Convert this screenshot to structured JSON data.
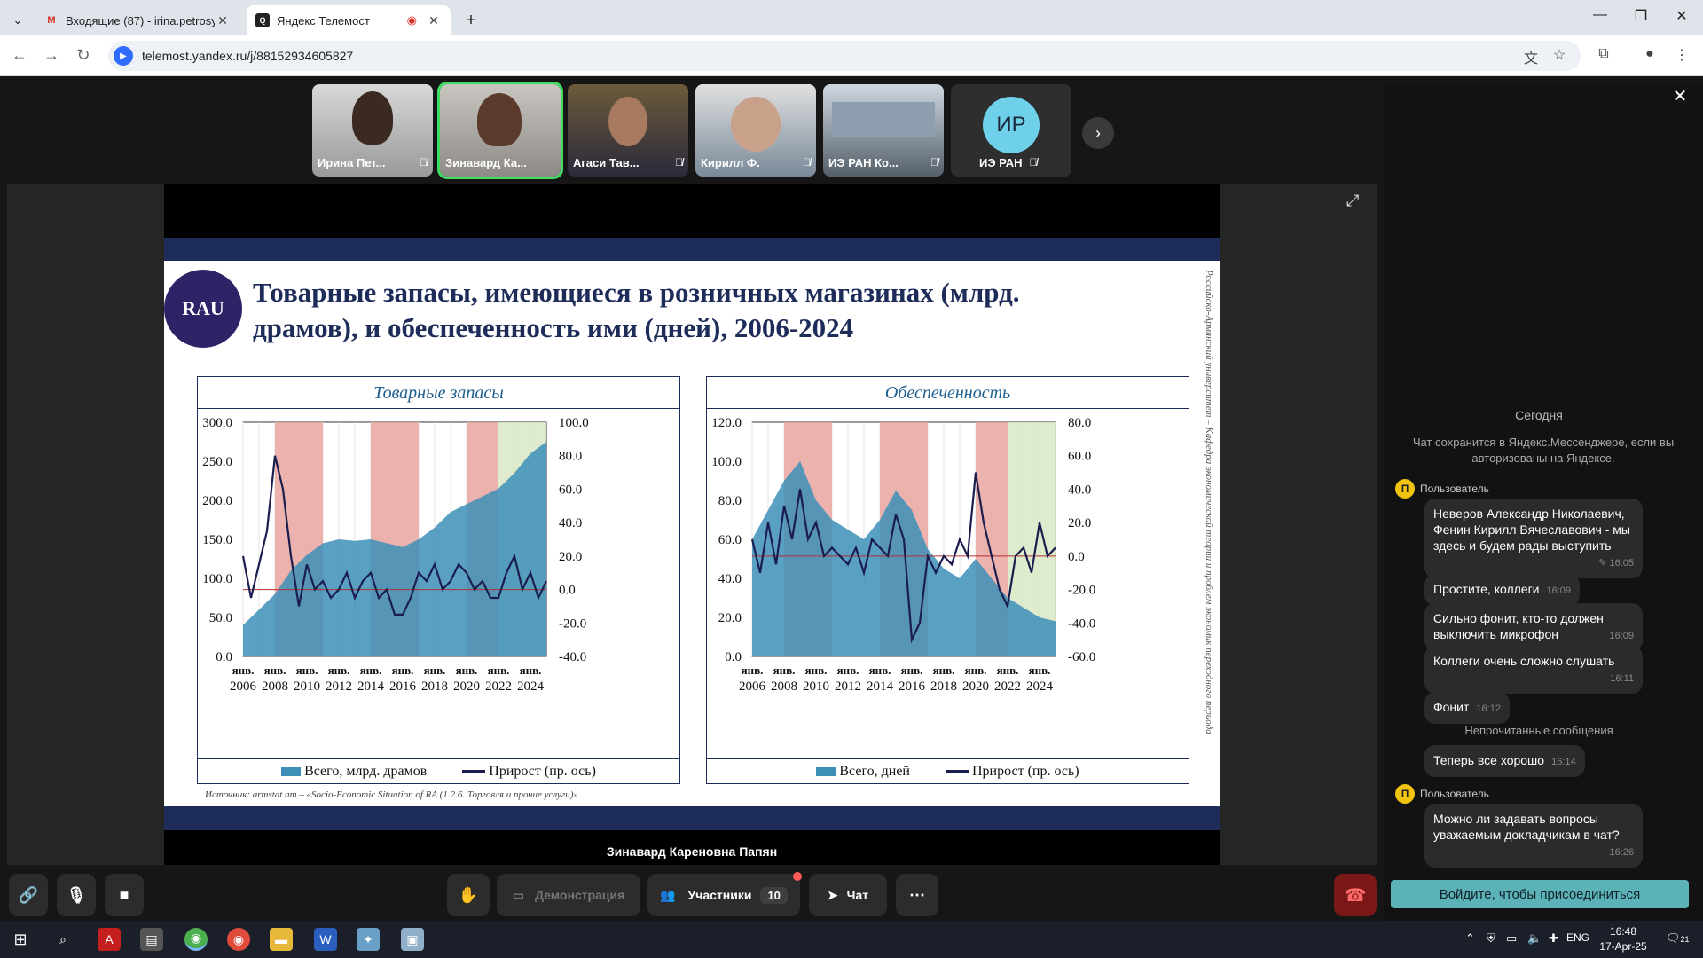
{
  "browser": {
    "tabs": [
      {
        "label": "Входящие (87) - irina.petrosyar",
        "icon": "gmail-icon"
      },
      {
        "label": "Яндекс Телемост",
        "icon": "telemost-icon"
      }
    ],
    "url": "telemost.yandex.ru/j/88152934605827"
  },
  "participants": [
    {
      "name": "Ирина Пет...",
      "muted": true
    },
    {
      "name": "Зинавард Ка...",
      "muted": false
    },
    {
      "name": "Агаси Тав...",
      "muted": true
    },
    {
      "name": "Кирилл Ф.",
      "muted": true
    },
    {
      "name": "ИЭ РАН Ко...",
      "muted": true
    },
    {
      "name": "ИЭ РАН",
      "initials": "ИР",
      "muted": true
    }
  ],
  "stage": {
    "speaker": "Зинавард Кареновна Папян"
  },
  "slide": {
    "title": "Товарные запасы, имеющиеся в розничных магазинах (млрд. драмов), и обеспеченность ими (дней), 2006-2024",
    "vertical_note": "Российско-Армянский университет – Кафедра экономической теории и проблем экономик переходного периода",
    "source": "Источник: armstat.am – «Socio-Economic Situation of RA (1.2.6. Торговля и прочие услуги)»",
    "left_legend": {
      "area": "Всего, млрд. драмов",
      "line": "Прирост (пр. ось)"
    },
    "right_legend": {
      "area": "Всего, дней",
      "line": "Прирост (пр. ось)"
    }
  },
  "chart_data": [
    {
      "type": "area",
      "title": "Товарные запасы",
      "x_ticks": [
        "янв. 2006",
        "янв. 2008",
        "янв. 2010",
        "янв. 2012",
        "янв. 2014",
        "янв. 2016",
        "янв. 2018",
        "янв. 2020",
        "янв. 2022",
        "янв. 2024"
      ],
      "y_left_ticks": [
        "300.0",
        "250.0",
        "200.0",
        "150.0",
        "100.0",
        "50.0",
        "0.0"
      ],
      "y_right_ticks": [
        "100.0",
        "80.0",
        "60.0",
        "40.0",
        "20.0",
        "0.0",
        "-20.0",
        "-40.0"
      ],
      "ylim_left": [
        0,
        300
      ],
      "ylim_right": [
        -40,
        100
      ],
      "xlim": [
        2006,
        2025
      ],
      "bands": [
        {
          "from": 2008.0,
          "to": 2011.0,
          "color": "#e9a5a0"
        },
        {
          "from": 2014.0,
          "to": 2017.0,
          "color": "#e9a5a0"
        },
        {
          "from": 2020.0,
          "to": 2022.0,
          "color": "#e9a5a0"
        },
        {
          "from": 2022.0,
          "to": 2025.0,
          "color": "#d8e9c4"
        }
      ],
      "series": [
        {
          "name": "Всего, млрд. драмов",
          "kind": "area",
          "axis": "left",
          "x": [
            2006,
            2007,
            2008,
            2009,
            2010,
            2011,
            2012,
            2013,
            2014,
            2015,
            2016,
            2017,
            2018,
            2019,
            2020,
            2021,
            2022,
            2023,
            2024,
            2025
          ],
          "values": [
            40,
            60,
            80,
            110,
            130,
            145,
            150,
            148,
            150,
            145,
            140,
            150,
            165,
            185,
            195,
            205,
            215,
            235,
            260,
            275
          ]
        },
        {
          "name": "Прирост (пр. ось)",
          "kind": "line",
          "axis": "right",
          "x": [
            2006,
            2006.5,
            2007,
            2007.5,
            2008,
            2008.5,
            2009,
            2009.5,
            2010,
            2010.5,
            2011,
            2011.5,
            2012,
            2012.5,
            2013,
            2013.5,
            2014,
            2014.5,
            2015,
            2015.5,
            2016,
            2016.5,
            2017,
            2017.5,
            2018,
            2018.5,
            2019,
            2019.5,
            2020,
            2020.5,
            2021,
            2021.5,
            2022,
            2022.5,
            2023,
            2023.5,
            2024,
            2024.5,
            2025
          ],
          "values": [
            20,
            -5,
            15,
            35,
            80,
            60,
            20,
            -10,
            15,
            0,
            5,
            -5,
            0,
            10,
            -5,
            5,
            10,
            -5,
            0,
            -15,
            -15,
            -5,
            10,
            5,
            15,
            0,
            5,
            15,
            10,
            0,
            5,
            -5,
            -5,
            10,
            20,
            0,
            10,
            -5,
            5
          ]
        }
      ]
    },
    {
      "type": "area",
      "title": "Обеспеченность",
      "x_ticks": [
        "янв. 2006",
        "янв. 2008",
        "янв. 2010",
        "янв. 2012",
        "янв. 2014",
        "янв. 2016",
        "янв. 2018",
        "янв. 2020",
        "янв. 2022",
        "янв. 2024"
      ],
      "y_left_ticks": [
        "120.0",
        "100.0",
        "80.0",
        "60.0",
        "40.0",
        "20.0",
        "0.0"
      ],
      "y_right_ticks": [
        "80.0",
        "60.0",
        "40.0",
        "20.0",
        "0.0",
        "-20.0",
        "-40.0",
        "-60.0"
      ],
      "ylim_left": [
        0,
        120
      ],
      "ylim_right": [
        -60,
        80
      ],
      "xlim": [
        2006,
        2025
      ],
      "bands": [
        {
          "from": 2008.0,
          "to": 2011.0,
          "color": "#e9a5a0"
        },
        {
          "from": 2014.0,
          "to": 2017.0,
          "color": "#e9a5a0"
        },
        {
          "from": 2020.0,
          "to": 2022.0,
          "color": "#e9a5a0"
        },
        {
          "from": 2022.0,
          "to": 2025.0,
          "color": "#d8e9c4"
        }
      ],
      "series": [
        {
          "name": "Всего, дней",
          "kind": "area",
          "axis": "left",
          "x": [
            2006,
            2007,
            2008,
            2009,
            2010,
            2011,
            2012,
            2013,
            2014,
            2015,
            2016,
            2017,
            2018,
            2019,
            2020,
            2021,
            2022,
            2023,
            2024,
            2025
          ],
          "values": [
            60,
            75,
            90,
            100,
            80,
            70,
            65,
            60,
            70,
            85,
            75,
            55,
            45,
            40,
            50,
            40,
            30,
            25,
            20,
            18
          ]
        },
        {
          "name": "Прирост (пр. ось)",
          "kind": "line",
          "axis": "right",
          "x": [
            2006,
            2006.5,
            2007,
            2007.5,
            2008,
            2008.5,
            2009,
            2009.5,
            2010,
            2010.5,
            2011,
            2011.5,
            2012,
            2012.5,
            2013,
            2013.5,
            2014,
            2014.5,
            2015,
            2015.5,
            2016,
            2016.5,
            2017,
            2017.5,
            2018,
            2018.5,
            2019,
            2019.5,
            2020,
            2020.5,
            2021,
            2021.5,
            2022,
            2022.5,
            2023,
            2023.5,
            2024,
            2024.5,
            2025
          ],
          "values": [
            10,
            -10,
            20,
            -5,
            30,
            10,
            40,
            10,
            20,
            0,
            5,
            0,
            -5,
            5,
            -10,
            10,
            5,
            0,
            25,
            10,
            -50,
            -40,
            0,
            -10,
            0,
            -5,
            10,
            0,
            50,
            20,
            0,
            -20,
            -30,
            0,
            5,
            -10,
            20,
            0,
            5
          ]
        }
      ]
    }
  ],
  "chat": {
    "day": "Сегодня",
    "note": "Чат сохранится в Яндекс.Мессенджере, если вы авторизованы на Яндексе.",
    "author": "Пользователь",
    "author_initial": "П",
    "messages": [
      {
        "text": "Неверов Александр Николаевич, Фенин Кирилл Вячеславович - мы здесь и будем рады выступить",
        "time": "✎ 16:05"
      },
      {
        "text": "Простите, коллеги",
        "time": "16:09"
      },
      {
        "text": "Сильно фонит, кто-то должен выключить микрофон",
        "time": "16:09"
      },
      {
        "text": "Коллеги очень сложно слушать",
        "time": "16:11"
      },
      {
        "text": "Фонит",
        "time": "16:12"
      }
    ],
    "unread_label": "Непрочитанные сообщения",
    "unread_message": {
      "text": "Теперь все хорошо",
      "time": "16:14"
    },
    "last_message": {
      "text": "Можно ли задавать вопросы уважаемым докладчикам в чат?",
      "time": "16:26"
    },
    "join_label": "Войдите, чтобы присоединиться"
  },
  "controls": {
    "demo_label": "Демонстрация",
    "participants_label": "Участники",
    "participants_count": "10",
    "chat_label": "Чат"
  },
  "taskbar": {
    "lang": "ENG",
    "time": "16:48",
    "date": "17-Apr-25",
    "notifications": "21"
  }
}
